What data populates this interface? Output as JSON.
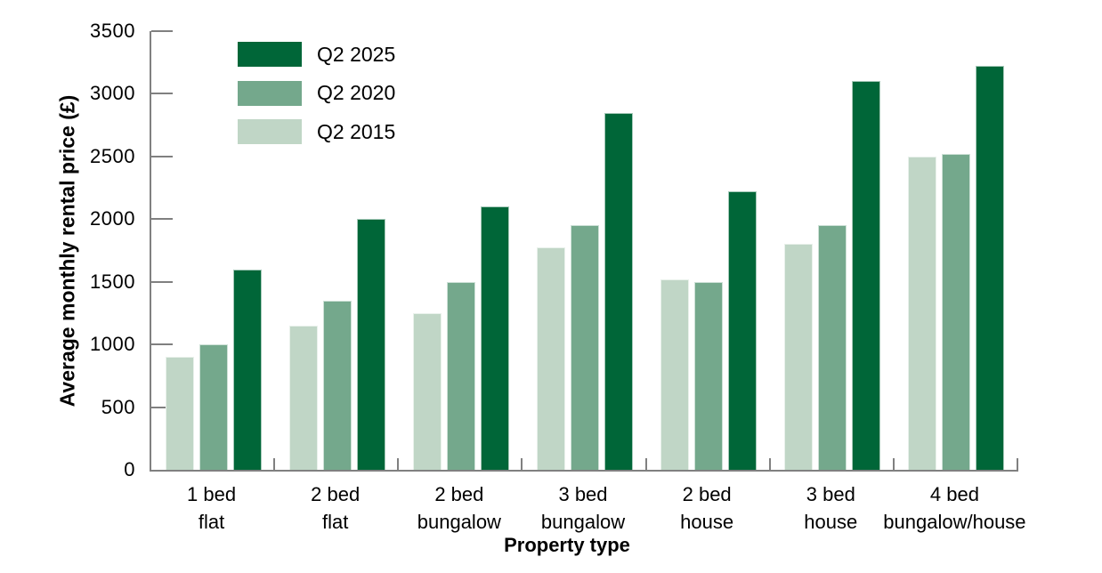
{
  "chart_data": {
    "type": "bar",
    "title": "",
    "xlabel": "Property type",
    "ylabel": "Average monthly rental price (£)",
    "ylim": [
      0,
      3500
    ],
    "ytick_interval": 500,
    "yticks": [
      0,
      500,
      1000,
      1500,
      2000,
      2500,
      3000,
      3500
    ],
    "grid": false,
    "legend_position": "top-left",
    "legend_order": [
      "Q2 2025",
      "Q2 2020",
      "Q2 2015"
    ],
    "categories": [
      [
        "1 bed",
        "flat"
      ],
      [
        "2 bed",
        "flat"
      ],
      [
        "2 bed",
        "bungalow"
      ],
      [
        "3 bed",
        "bungalow"
      ],
      [
        "2 bed",
        "house"
      ],
      [
        "3 bed",
        "house"
      ],
      [
        "4 bed",
        "bungalow/house"
      ]
    ],
    "series": [
      {
        "name": "Q2 2015",
        "color": "#c0d6c6",
        "values": [
          900,
          1150,
          1250,
          1775,
          1520,
          1800,
          2500
        ]
      },
      {
        "name": "Q2 2020",
        "color": "#74a88c",
        "values": [
          1000,
          1350,
          1500,
          1950,
          1500,
          1950,
          2520
        ]
      },
      {
        "name": "Q2 2025",
        "color": "#006638",
        "values": [
          1600,
          2000,
          2100,
          2850,
          2220,
          3100,
          3220
        ]
      }
    ],
    "colors": {
      "axis": "#808080",
      "text": "#000000"
    }
  }
}
